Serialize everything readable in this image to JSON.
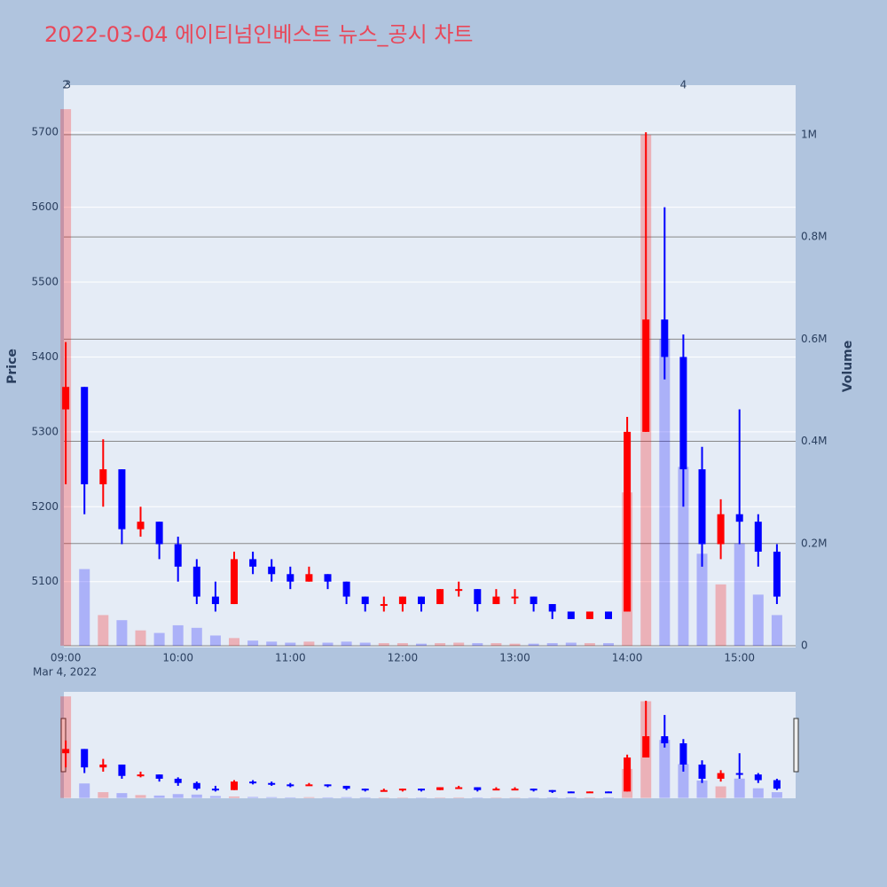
{
  "chart_data": {
    "type": "candlestick",
    "title": "2022-03-04 에이티넘인베스트 뉴스_공시 차트",
    "y_label": "Price",
    "y2_label": "Volume",
    "x_date_label": "Mar 4, 2022",
    "x": [
      "09:00",
      "09:10",
      "09:20",
      "09:30",
      "09:40",
      "09:50",
      "10:00",
      "10:10",
      "10:20",
      "10:30",
      "10:40",
      "10:50",
      "11:00",
      "11:10",
      "11:20",
      "11:30",
      "11:40",
      "11:50",
      "12:00",
      "12:10",
      "12:20",
      "12:30",
      "12:40",
      "12:50",
      "13:00",
      "13:10",
      "13:20",
      "13:30",
      "13:40",
      "13:50",
      "14:00",
      "14:10",
      "14:20",
      "14:30",
      "14:40",
      "14:50",
      "15:00",
      "15:10",
      "15:20"
    ],
    "open": [
      5330,
      5360,
      5230,
      5250,
      5170,
      5180,
      5150,
      5120,
      5080,
      5070,
      5130,
      5120,
      5110,
      5100,
      5110,
      5100,
      5080,
      5070,
      5070,
      5080,
      5070,
      5090,
      5090,
      5070,
      5080,
      5080,
      5070,
      5060,
      5050,
      5060,
      5060,
      5300,
      5450,
      5400,
      5250,
      5150,
      5190,
      5180,
      5140
    ],
    "high": [
      5420,
      5360,
      5290,
      5250,
      5200,
      5180,
      5160,
      5130,
      5100,
      5140,
      5140,
      5130,
      5120,
      5120,
      5110,
      5100,
      5080,
      5080,
      5080,
      5080,
      5090,
      5100,
      5090,
      5090,
      5090,
      5080,
      5070,
      5060,
      5060,
      5060,
      5320,
      5700,
      5600,
      5430,
      5280,
      5210,
      5330,
      5190,
      5150
    ],
    "low": [
      5230,
      5190,
      5200,
      5150,
      5160,
      5130,
      5100,
      5070,
      5060,
      5070,
      5110,
      5100,
      5090,
      5100,
      5090,
      5070,
      5060,
      5060,
      5060,
      5060,
      5070,
      5080,
      5060,
      5070,
      5070,
      5060,
      5050,
      5050,
      5050,
      5050,
      5060,
      5300,
      5370,
      5200,
      5120,
      5130,
      5150,
      5120,
      5070
    ],
    "close": [
      5360,
      5230,
      5250,
      5170,
      5180,
      5150,
      5120,
      5080,
      5070,
      5130,
      5120,
      5110,
      5100,
      5110,
      5100,
      5080,
      5070,
      5070,
      5080,
      5070,
      5090,
      5090,
      5070,
      5080,
      5080,
      5070,
      5060,
      5050,
      5060,
      5050,
      5300,
      5450,
      5400,
      5250,
      5150,
      5190,
      5180,
      5140,
      5080
    ],
    "volume": [
      1050000,
      150000,
      60000,
      50000,
      30000,
      25000,
      40000,
      35000,
      20000,
      15000,
      10000,
      8000,
      6000,
      8000,
      6000,
      8000,
      6000,
      5000,
      5000,
      4000,
      5000,
      6000,
      5000,
      5000,
      4000,
      4000,
      5000,
      6000,
      5000,
      5000,
      300000,
      1000000,
      600000,
      350000,
      180000,
      120000,
      200000,
      100000,
      60000
    ],
    "increasing_color": "#ff0000",
    "decreasing_color": "#0000ff",
    "xlim": [
      "08:59",
      "15:30"
    ],
    "xticks": [
      "09:00",
      "10:00",
      "11:00",
      "12:00",
      "13:00",
      "14:00",
      "15:00"
    ],
    "ylim": [
      5012,
      5763
    ],
    "yticks": [
      5100,
      5200,
      5300,
      5400,
      5500,
      5600,
      5700
    ],
    "y2lim": [
      -3500,
      1097000
    ],
    "y2ticks": [
      0,
      {
        "value": 200000,
        "label": "0.2M"
      },
      {
        "value": 400000,
        "label": "0.4M"
      },
      {
        "value": 600000,
        "label": "0.6M"
      },
      {
        "value": 800000,
        "label": "0.8M"
      },
      {
        "value": 1000000,
        "label": "1M"
      }
    ],
    "annotations": [
      {
        "x": "09:00",
        "text": "2"
      },
      {
        "x": "09:01",
        "text": "3"
      },
      {
        "x": "14:30",
        "text": "4"
      }
    ],
    "grid": true,
    "range_slider": true
  }
}
